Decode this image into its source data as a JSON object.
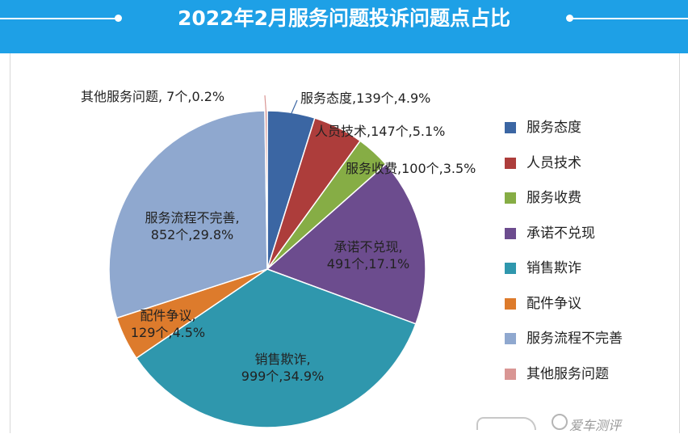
{
  "title": "2022年2月服务问题投诉问题点占比",
  "watermark": "爱车测评",
  "chart_data": {
    "type": "pie",
    "title": "2022年2月服务问题投诉问题点占比",
    "start_angle_deg": 0,
    "direction": "clockwise",
    "slices": [
      {
        "name": "服务态度",
        "count": 139,
        "percent": 4.9,
        "color": "#3b66a3",
        "label_line1": "服务态度,139个,4.9%",
        "label_line2": ""
      },
      {
        "name": "人员技术",
        "count": 147,
        "percent": 5.1,
        "color": "#ad3d3b",
        "label_line1": "人员技术,147个,5.1%",
        "label_line2": ""
      },
      {
        "name": "服务收费",
        "count": 100,
        "percent": 3.5,
        "color": "#86ad45",
        "label_line1": "服务收费,100个,3.5%",
        "label_line2": ""
      },
      {
        "name": "承诺不兑现",
        "count": 491,
        "percent": 17.1,
        "color": "#6c4c8e",
        "label_line1": "承诺不兑现,",
        "label_line2": "491个,17.1%"
      },
      {
        "name": "销售欺诈",
        "count": 999,
        "percent": 34.9,
        "color": "#2f97ad",
        "label_line1": "销售欺诈,",
        "label_line2": "999个,34.9%"
      },
      {
        "name": "配件争议",
        "count": 129,
        "percent": 4.5,
        "color": "#dd7b2c",
        "label_line1": "配件争议,",
        "label_line2": "129个,4.5%"
      },
      {
        "name": "服务流程不完善",
        "count": 852,
        "percent": 29.8,
        "color": "#8fa8cf",
        "label_line1": "服务流程不完善,",
        "label_line2": "852个,29.8%"
      },
      {
        "name": "其他服务问题",
        "count": 7,
        "percent": 0.2,
        "color": "#d99694",
        "label_line1": "其他服务问题, 7个,0.2%",
        "label_line2": ""
      }
    ],
    "legend": [
      "服务态度",
      "人员技术",
      "服务收费",
      "承诺不兑现",
      "销售欺诈",
      "配件争议",
      "服务流程不完善",
      "其他服务问题"
    ],
    "legend_position": "right"
  }
}
